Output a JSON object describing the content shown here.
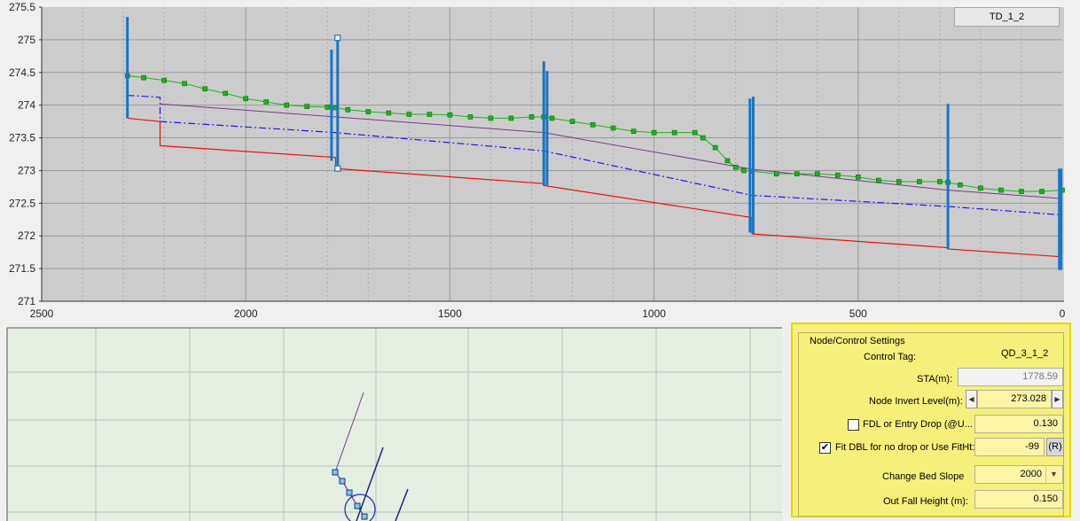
{
  "profile_chart": {
    "legend_label": "TD_1_2",
    "x_ticks": [
      "2500",
      "2000",
      "1500",
      "1000",
      "500",
      "0"
    ],
    "y_ticks": [
      "271",
      "271.5",
      "272",
      "272.5",
      "273",
      "273.5",
      "274",
      "274.5",
      "275",
      "275.5"
    ],
    "colors": {
      "background": "#cccccc",
      "water_surface": "#1db41d",
      "bed_invert": "#ee1111",
      "dbl": "#1a1aee",
      "fit_line": "#7b3a8c",
      "node": "#1a75c4"
    }
  },
  "chart_data": {
    "type": "line",
    "xlim": [
      2500,
      0
    ],
    "ylim": [
      271,
      275.5
    ],
    "grid": true,
    "legend": "top-right",
    "series": [
      {
        "x": [
          2290,
          2210,
          2210,
          1780,
          1780,
          1270,
          1270,
          760,
          760,
          280,
          280,
          0
        ],
        "y": [
          273.8,
          273.75,
          273.38,
          273.2,
          273.03,
          272.8,
          272.77,
          272.28,
          272.03,
          271.82,
          271.8,
          271.68
        ]
      },
      {
        "x": [
          2290,
          2210,
          2210,
          1780,
          1270,
          760,
          280,
          0
        ],
        "y": [
          274.15,
          274.12,
          273.75,
          273.58,
          273.3,
          272.62,
          272.45,
          272.32
        ]
      },
      {
        "x": [
          2210,
          1780,
          1270,
          760,
          280,
          0
        ],
        "y": [
          274.02,
          273.82,
          273.58,
          273.02,
          272.7,
          272.57
        ]
      },
      {
        "x": [
          2290,
          2250,
          2200,
          2150,
          2100,
          2050,
          2000,
          1950,
          1900,
          1850,
          1800,
          1780,
          1750,
          1700,
          1650,
          1600,
          1550,
          1500,
          1450,
          1400,
          1350,
          1300,
          1270,
          1250,
          1200,
          1150,
          1100,
          1050,
          1000,
          950,
          900,
          880,
          850,
          820,
          800,
          780,
          760,
          700,
          650,
          600,
          550,
          500,
          450,
          400,
          350,
          300,
          280,
          250,
          200,
          150,
          100,
          50,
          0
        ],
        "y": [
          274.45,
          274.42,
          274.38,
          274.33,
          274.25,
          274.18,
          274.1,
          274.05,
          274.0,
          273.98,
          273.97,
          273.96,
          273.93,
          273.9,
          273.88,
          273.86,
          273.86,
          273.85,
          273.82,
          273.8,
          273.8,
          273.82,
          273.82,
          273.8,
          273.75,
          273.7,
          273.65,
          273.6,
          273.58,
          273.58,
          273.58,
          273.5,
          273.35,
          273.15,
          273.05,
          273.0,
          272.99,
          272.95,
          272.95,
          272.95,
          272.93,
          272.9,
          272.85,
          272.83,
          272.83,
          272.83,
          272.82,
          272.78,
          272.73,
          272.7,
          272.68,
          272.68,
          272.7
        ]
      }
    ],
    "node_markers": [
      {
        "x": 2290,
        "y_top": 275.35,
        "y_bottom": 273.8
      },
      {
        "x": 1790,
        "y_top": 274.85,
        "y_bottom": 273.15
      },
      {
        "x": 1775,
        "y_top": 275.03,
        "y_bottom": 273.03
      },
      {
        "x": 1270,
        "y_top": 274.67,
        "y_bottom": 272.77
      },
      {
        "x": 1262,
        "y_top": 274.52,
        "y_bottom": 272.77
      },
      {
        "x": 765,
        "y_top": 274.1,
        "y_bottom": 272.05
      },
      {
        "x": 757,
        "y_top": 274.13,
        "y_bottom": 272.03
      },
      {
        "x": 280,
        "y_top": 274.02,
        "y_bottom": 271.8
      },
      {
        "x": 5,
        "y_top": 273.03,
        "y_bottom": 271.48
      }
    ]
  },
  "settings": {
    "group_title": "Node/Control Settings",
    "control_tag_label": "Control Tag:",
    "control_tag_value": "QD_3_1_2",
    "sta_label": "STA(m):",
    "sta_value": "1778.59",
    "invert_label": "Node Invert Level(m):",
    "invert_value": "273.028",
    "fdl_label": "FDL or Entry Drop (@U...",
    "fdl_value": "0.130",
    "fdl_checked": false,
    "fit_label": "Fit DBL for no drop or Use FitHt:",
    "fit_value": "-99",
    "fit_checked": true,
    "fit_button": "(R)",
    "slope_label": "Change Bed Slope",
    "slope_value": "2000",
    "outfall_label": "Out Fall Height (m):",
    "outfall_value": "0.150"
  }
}
